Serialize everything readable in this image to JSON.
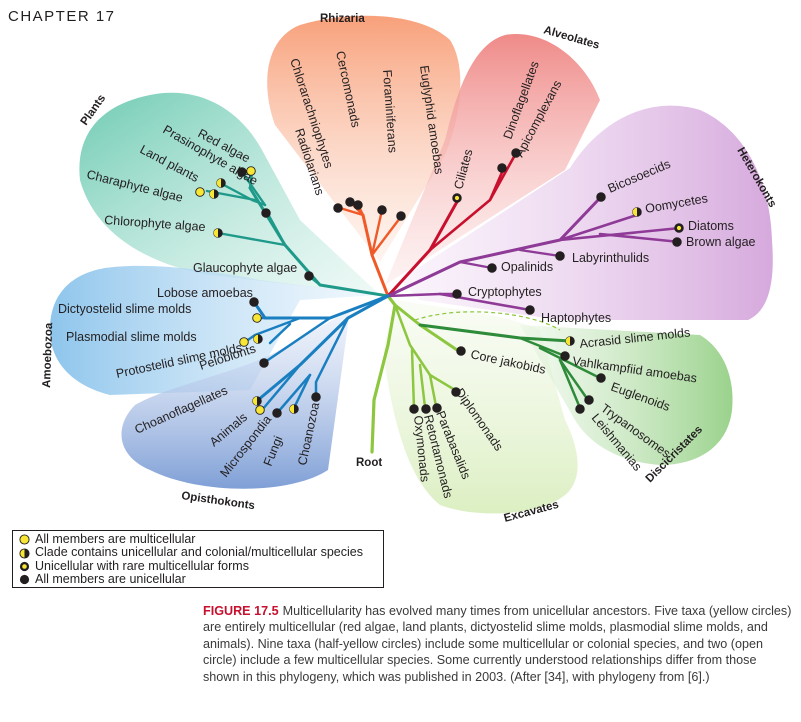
{
  "header": {
    "chapter": "CHAPTER  17"
  },
  "diagram": {
    "groups": {
      "rhizaria": "Rhizaria",
      "alveolates": "Alveolates",
      "heterokonts": "Heterokonts",
      "plants": "Plants",
      "amoebozoa": "Amoebozoa",
      "opisthokonts": "Opisthokonts",
      "excavates": "Excavates",
      "discicristates": "Discicristates"
    },
    "root_label": "Root",
    "taxa": {
      "chlorarachniophytes": "Chlorarachniophytes",
      "cercomonads": "Cercomonads",
      "radiolarians": "Radiolarians",
      "foraminiferans": "Foraminiferans",
      "euglyphid_amoebas": "Euglyphid amoebas",
      "ciliates": "Ciliates",
      "dinoflagellates": "Dinoflagellates",
      "apicomplexans": "Apicomplexans",
      "bicosoecids": "Bicosoecids",
      "oomycetes": "Oomycetes",
      "diatoms": "Diatoms",
      "brown_algae": "Brown algae",
      "labyrinthulids": "Labyrinthulids",
      "opalinids": "Opalinids",
      "cryptophytes": "Cryptophytes",
      "haptophytes": "Haptophytes",
      "red_algae": "Red algae",
      "prasinophyte_algae": "Prasinophyte algae",
      "land_plants": "Land plants",
      "charaphyte_algae": "Charaphyte algae",
      "chlorophyte_algae": "Chlorophyte algae",
      "glaucophyte_algae": "Glaucophyte algae",
      "lobose_amoebas": "Lobose amoebas",
      "dictyostelid": "Dictyostelid slime molds",
      "plasmodial": "Plasmodial slime molds",
      "protostelid": "Protostelid slime molds",
      "pelobionts": "Pelobionts",
      "choanoflagellates": "Choanoflagellates",
      "animals": "Animals",
      "microspondia": "Microspondia",
      "fungi": "Fungi",
      "choanozoa": "Choanozoa",
      "core_jakobids": "Core jakobids",
      "diplomonads": "Diplomonads",
      "parabasalids": "Parabasalids",
      "retortamonads": "Retortamonads",
      "oxymonads": "Oxymonads",
      "acrasid": "Acrasid slime molds",
      "vahlkampfiid": "Vahlkampfiid amoebas",
      "euglenoids": "Euglenoids",
      "trypanosomes": "Trypanosomes",
      "leishmanias": "Leishmanias"
    },
    "colors": {
      "rhizaria": "#f05a28",
      "alveolates": "#c8102e",
      "heterokonts": "#8e3a96",
      "plants": "#1f9a8a",
      "amoebozoa_opisthokonts": "#1a7fc1",
      "excavates": "#8dc63f",
      "discicristates": "#2e8b3a",
      "yellow_marker": "#f7e634",
      "black_marker": "#231f20"
    }
  },
  "legend": {
    "items": [
      {
        "marker": "full-yellow",
        "text": "All members are multicellular"
      },
      {
        "marker": "half-yellow",
        "text": "Clade contains unicellular and colonial/multicellular species"
      },
      {
        "marker": "open-yellow",
        "text": "Unicellular with rare multicellular forms"
      },
      {
        "marker": "black",
        "text": "All members are unicellular"
      }
    ]
  },
  "caption": {
    "figure_label": "FIGURE 17.5",
    "text": "Multicellularity has evolved many times from unicellular ancestors. Five taxa (yellow circles) are entirely multicellular (red algae, land plants, dictyostelid slime molds, plasmodial slime molds, and animals). Nine taxa (half-yellow circles) include some multicellular or colonial species, and two (open circle) include a few multicellular species. Some currently understood relationships differ from those shown in this phylogeny, which was published in 2003. (After [34], with phylogeny from [6].)"
  }
}
